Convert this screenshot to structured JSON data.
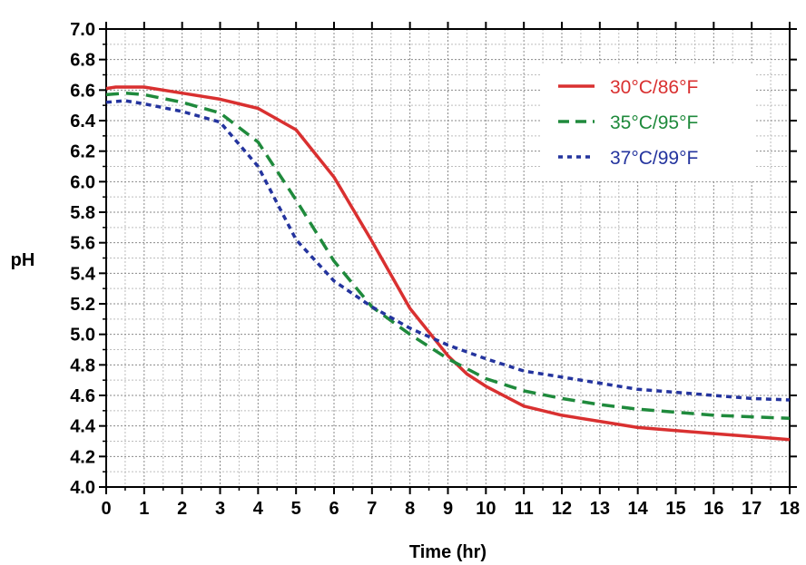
{
  "chart_data": {
    "type": "line",
    "title": "",
    "xlabel": "Time (hr)",
    "ylabel": "pH",
    "xlim": [
      0,
      18
    ],
    "ylim": [
      4.0,
      7.0
    ],
    "x_ticks": [
      "0",
      "1",
      "2",
      "3",
      "4",
      "5",
      "6",
      "7",
      "8",
      "9",
      "10",
      "11",
      "12",
      "13",
      "14",
      "15",
      "16",
      "17",
      "18"
    ],
    "y_ticks": [
      "4.0",
      "4.2",
      "4.4",
      "4.6",
      "4.8",
      "5.0",
      "5.2",
      "5.4",
      "5.6",
      "5.8",
      "6.0",
      "6.2",
      "6.4",
      "6.6",
      "6.8",
      "7.0"
    ],
    "grid": true,
    "legend_position": "top-right",
    "series": [
      {
        "name": "30°C/86°F",
        "color": "#d93030",
        "style": "solid",
        "x": [
          0,
          0.25,
          0.5,
          1,
          2,
          3,
          4,
          5,
          6,
          7,
          8,
          9,
          9.5,
          10,
          11,
          12,
          13,
          14,
          15,
          16,
          17,
          18
        ],
        "y": [
          6.61,
          6.62,
          6.62,
          6.62,
          6.58,
          6.54,
          6.48,
          6.34,
          6.03,
          5.61,
          5.17,
          4.86,
          4.74,
          4.66,
          4.53,
          4.47,
          4.43,
          4.39,
          4.37,
          4.35,
          4.33,
          4.31
        ]
      },
      {
        "name": "35°C/95°F",
        "color": "#1f8a3c",
        "style": "dashed",
        "x": [
          0,
          0.5,
          1,
          2,
          3,
          4,
          5,
          6,
          7,
          8,
          9,
          10,
          11,
          12,
          13,
          14,
          15,
          16,
          17,
          18
        ],
        "y": [
          6.57,
          6.58,
          6.57,
          6.52,
          6.45,
          6.26,
          5.88,
          5.48,
          5.18,
          5.0,
          4.84,
          4.71,
          4.63,
          4.58,
          4.54,
          4.51,
          4.49,
          4.47,
          4.46,
          4.45
        ]
      },
      {
        "name": "37°C/99°F",
        "color": "#24349e",
        "style": "dotted",
        "x": [
          0,
          0.5,
          1,
          2,
          3,
          4,
          5,
          6,
          7,
          8,
          9,
          10,
          11,
          12,
          13,
          14,
          15,
          16,
          17,
          18
        ],
        "y": [
          6.52,
          6.53,
          6.51,
          6.46,
          6.39,
          6.1,
          5.62,
          5.35,
          5.18,
          5.04,
          4.93,
          4.84,
          4.76,
          4.72,
          4.68,
          4.64,
          4.62,
          4.6,
          4.58,
          4.57
        ]
      }
    ]
  }
}
